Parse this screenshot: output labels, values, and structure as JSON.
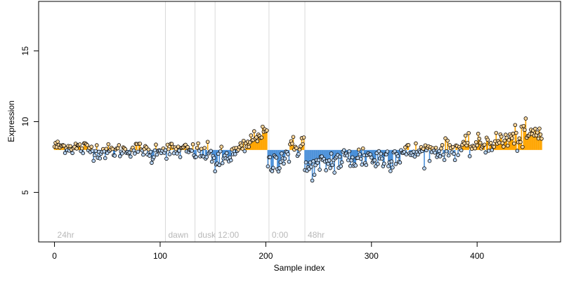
{
  "chart_data": {
    "type": "scatter",
    "title": "",
    "xlabel": "Sample index",
    "ylabel": "Expression",
    "xlim": [
      -15,
      479
    ],
    "ylim": [
      1.5,
      18.5
    ],
    "x_ticks": [
      0,
      100,
      200,
      300,
      400
    ],
    "y_ticks": [
      5,
      10,
      15
    ],
    "grid": false,
    "legend": "none",
    "baseline": 8.0,
    "colors": {
      "above": "#ffa500",
      "below": "#4a90d9",
      "marker_above": "#ffd79a",
      "marker_below": "#b7d3f2",
      "annotation_line": "#d9d9d9",
      "annotation_text": "#b8b8b8"
    },
    "annotations": [
      {
        "x": 0,
        "label": "24hr",
        "show_line": false
      },
      {
        "x": 105,
        "label": "dawn",
        "show_line": true
      },
      {
        "x": 133,
        "label": "dusk",
        "show_line": true
      },
      {
        "x": 152,
        "label": "12:00",
        "show_line": true
      },
      {
        "x": 203,
        "label": "0:00",
        "show_line": true
      },
      {
        "x": 237,
        "label": "48hr",
        "show_line": true
      }
    ],
    "series": [
      {
        "x_start": 0,
        "x_end": 16,
        "y_start": 8.3,
        "y_end": 8.2,
        "noise": 0.22
      },
      {
        "x_start": 17,
        "x_end": 50,
        "y_start": 8.2,
        "y_end": 7.9,
        "noise": 0.3
      },
      {
        "x_start": 51,
        "x_end": 85,
        "y_start": 7.9,
        "y_end": 8.1,
        "noise": 0.25
      },
      {
        "x_start": 86,
        "x_end": 95,
        "y_start": 7.7,
        "y_end": 7.6,
        "noise": 0.35
      },
      {
        "x_start": 96,
        "x_end": 104,
        "y_start": 8.2,
        "y_end": 8.0,
        "noise": 0.25
      },
      {
        "x_start": 105,
        "x_end": 132,
        "y_start": 8.0,
        "y_end": 7.9,
        "noise": 0.3
      },
      {
        "x_start": 133,
        "x_end": 151,
        "y_start": 7.9,
        "y_end": 7.6,
        "noise": 0.35
      },
      {
        "x_start": 152,
        "x_end": 165,
        "y_start": 7.0,
        "y_end": 7.6,
        "noise": 0.45
      },
      {
        "x_start": 166,
        "x_end": 185,
        "y_start": 7.6,
        "y_end": 8.4,
        "noise": 0.3
      },
      {
        "x_start": 186,
        "x_end": 201,
        "y_start": 8.8,
        "y_end": 9.3,
        "noise": 0.22
      },
      {
        "x_start": 202,
        "x_end": 236,
        "y_start": 6.8,
        "y_end": 8.6,
        "noise": 0.45
      },
      {
        "x_start": 237,
        "x_end": 260,
        "y_start": 6.6,
        "y_end": 7.1,
        "noise": 0.4
      },
      {
        "x_start": 261,
        "x_end": 300,
        "y_start": 7.2,
        "y_end": 7.6,
        "noise": 0.5
      },
      {
        "x_start": 301,
        "x_end": 330,
        "y_start": 7.3,
        "y_end": 7.8,
        "noise": 0.5
      },
      {
        "x_start": 331,
        "x_end": 380,
        "y_start": 7.8,
        "y_end": 8.1,
        "noise": 0.35
      },
      {
        "x_start": 381,
        "x_end": 420,
        "y_start": 8.1,
        "y_end": 8.6,
        "noise": 0.35
      },
      {
        "x_start": 421,
        "x_end": 461,
        "y_start": 8.6,
        "y_end": 9.2,
        "noise": 0.45
      }
    ]
  }
}
